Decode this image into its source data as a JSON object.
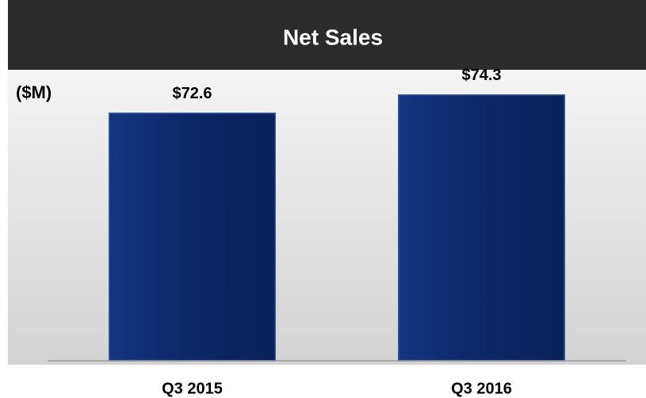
{
  "chart_data": {
    "type": "bar",
    "title": "Net Sales",
    "ylabel": "($M)",
    "categories": [
      "Q3 2015",
      "Q3 2016"
    ],
    "values": [
      72.6,
      74.3
    ],
    "value_labels": [
      "$72.6",
      "$74.3"
    ],
    "color": "#0e2a6e",
    "ylim": [
      49.5,
      76.5
    ]
  }
}
